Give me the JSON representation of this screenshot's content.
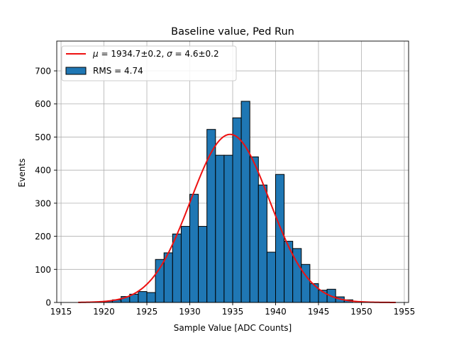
{
  "chart_data": {
    "type": "bar",
    "title": "Baseline value, Ped Run",
    "xlabel": "Sample Value [ADC Counts]",
    "ylabel": "Events",
    "xlim": [
      1914.5,
      1955.5
    ],
    "ylim": [
      0,
      790
    ],
    "grid": true,
    "legend_position": "top-left",
    "xticks": [
      1915,
      1920,
      1925,
      1930,
      1935,
      1940,
      1945,
      1950,
      1955
    ],
    "yticks": [
      0,
      100,
      200,
      300,
      400,
      500,
      600,
      700
    ],
    "bin_width": 1,
    "histogram": {
      "name": "RMS = 4.74",
      "bin_left_edges": [
        1920,
        1921,
        1922,
        1923,
        1924,
        1925,
        1926,
        1927,
        1928,
        1929,
        1930,
        1931,
        1932,
        1933,
        1934,
        1935,
        1936,
        1937,
        1938,
        1939,
        1940,
        1941,
        1942,
        1943,
        1944,
        1945,
        1946,
        1947,
        1948
      ],
      "values": [
        4,
        8,
        18,
        25,
        33,
        30,
        130,
        150,
        207,
        230,
        327,
        230,
        523,
        445,
        445,
        558,
        608,
        440,
        355,
        152,
        387,
        185,
        163,
        115,
        57,
        37,
        40,
        17,
        8
      ]
    },
    "fit": {
      "name": "μ = 1934.7±0.2, σ = 4.6±0.2",
      "label_mu": "μ",
      "label_sigma": "σ",
      "mu": 1934.7,
      "mu_err": 0.2,
      "sigma": 4.6,
      "sigma_err": 0.2,
      "amplitude": 508,
      "x_range": [
        1917,
        1954
      ],
      "color": "#ee1111"
    },
    "legend": [
      {
        "label_parts": [
          "μ",
          " = 1934.7±0.2, ",
          "σ",
          " = 4.6±0.2"
        ],
        "kind": "line",
        "color": "#ee1111"
      },
      {
        "label": "RMS = 4.74",
        "kind": "patch",
        "color": "#1f77b4"
      }
    ],
    "bar_color": "#1f77b4",
    "bar_edge_color": "#000000"
  }
}
